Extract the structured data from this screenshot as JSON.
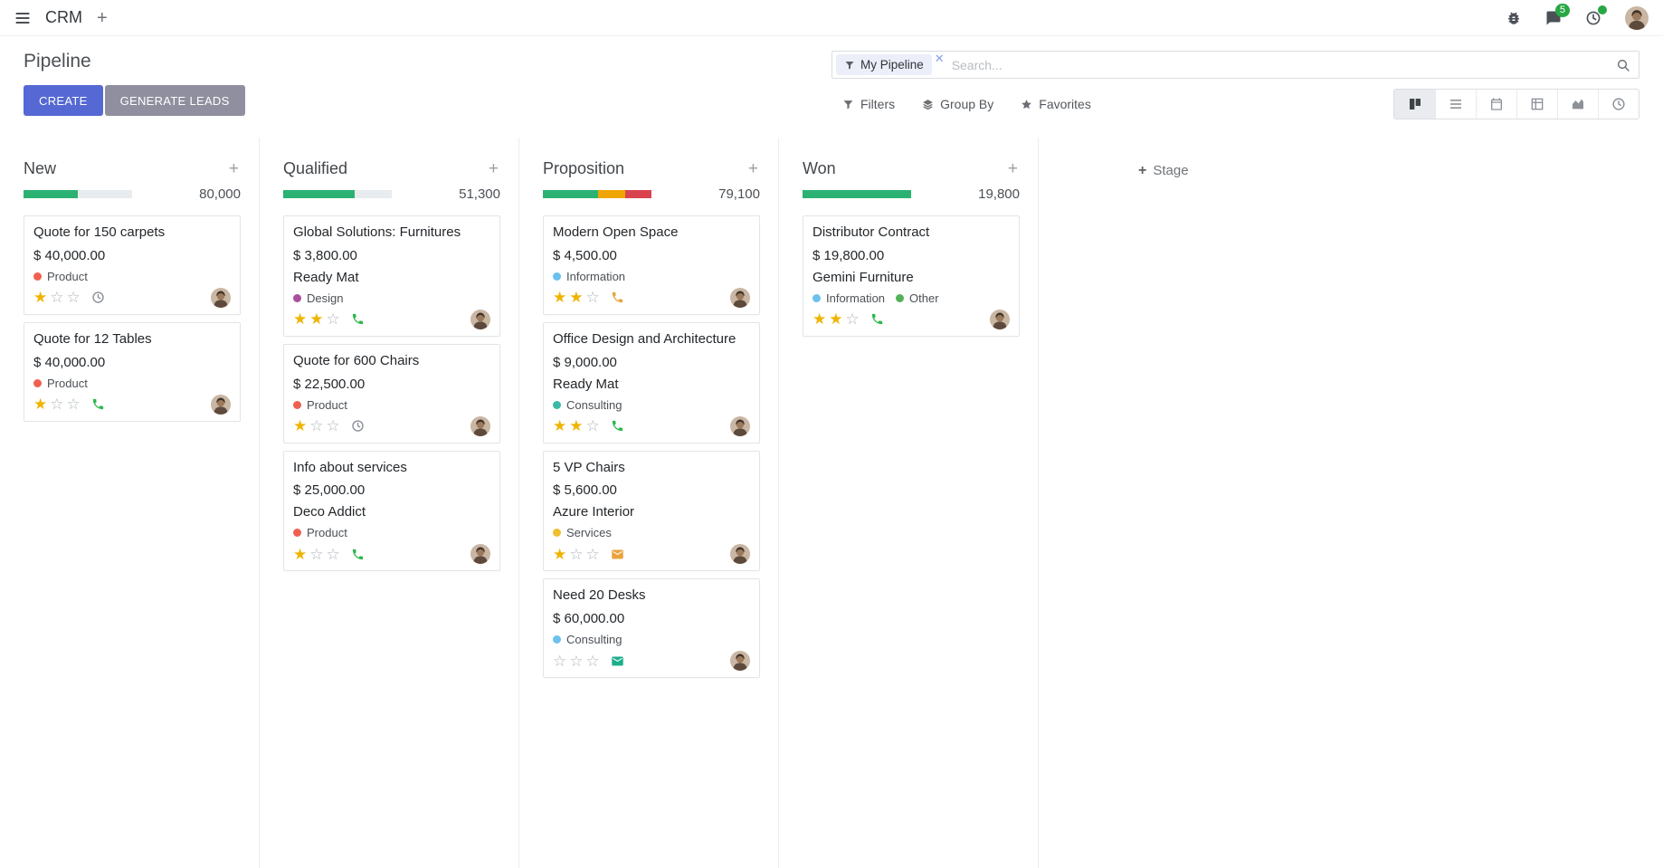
{
  "colors": {
    "primary_button": "#5568d4",
    "secondary_button": "#8f8f9f",
    "badge_green": "#28a745",
    "progress_green": "#2bb273",
    "progress_yellow": "#efa502",
    "progress_red": "#d94350",
    "progress_muted": "#e9ecef",
    "star_gold": "#efb400"
  },
  "navbar": {
    "app": "CRM",
    "messages_count": "5"
  },
  "control": {
    "title": "Pipeline",
    "create": "CREATE",
    "generate_leads": "GENERATE LEADS",
    "filters": "Filters",
    "group_by": "Group By",
    "favorites": "Favorites",
    "search_facet": "My Pipeline",
    "search_placeholder": "Search...",
    "add_stage": "Stage"
  },
  "columns": [
    {
      "name": "New",
      "counter": "80,000",
      "progress": [
        {
          "color": "#2bb273",
          "pct": 50
        }
      ],
      "cards": [
        {
          "title": "Quote for 150 carpets",
          "amount": "$ 40,000.00",
          "tags": [
            {
              "label": "Product",
              "color": "#f06050"
            }
          ],
          "stars": 1,
          "activity": {
            "icon": "clock",
            "color": "#8a8f98"
          }
        },
        {
          "title": "Quote for 12 Tables",
          "amount": "$ 40,000.00",
          "tags": [
            {
              "label": "Product",
              "color": "#f06050"
            }
          ],
          "stars": 1,
          "activity": {
            "icon": "phone",
            "color": "#2db84b"
          }
        }
      ]
    },
    {
      "name": "Qualified",
      "counter": "51,300",
      "progress": [
        {
          "color": "#2bb273",
          "pct": 66
        }
      ],
      "cards": [
        {
          "title": "Global Solutions: Furnitures",
          "amount": "$ 3,800.00",
          "partner": "Ready Mat",
          "tags": [
            {
              "label": "Design",
              "color": "#a8509e"
            }
          ],
          "stars": 2,
          "activity": {
            "icon": "phone",
            "color": "#2db84b"
          }
        },
        {
          "title": "Quote for 600 Chairs",
          "amount": "$ 22,500.00",
          "tags": [
            {
              "label": "Product",
              "color": "#f06050"
            }
          ],
          "stars": 1,
          "activity": {
            "icon": "clock",
            "color": "#8a8f98"
          }
        },
        {
          "title": "Info about services",
          "amount": "$ 25,000.00",
          "partner": "Deco Addict",
          "tags": [
            {
              "label": "Product",
              "color": "#f06050"
            }
          ],
          "stars": 1,
          "activity": {
            "icon": "phone",
            "color": "#2db84b"
          }
        }
      ]
    },
    {
      "name": "Proposition",
      "counter": "79,100",
      "progress": [
        {
          "color": "#2bb273",
          "pct": 51
        },
        {
          "color": "#efa502",
          "pct": 25
        },
        {
          "color": "#d94350",
          "pct": 24
        }
      ],
      "cards": [
        {
          "title": "Modern Open Space",
          "amount": "$ 4,500.00",
          "tags": [
            {
              "label": "Information",
              "color": "#6cc1ed"
            }
          ],
          "stars": 2,
          "activity": {
            "icon": "phone",
            "color": "#e9a33c"
          }
        },
        {
          "title": "Office Design and Architecture",
          "amount": "$ 9,000.00",
          "partner": "Ready Mat",
          "tags": [
            {
              "label": "Consulting",
              "color": "#3cb8a6"
            }
          ],
          "stars": 2,
          "activity": {
            "icon": "phone",
            "color": "#2db84b"
          }
        },
        {
          "title": "5 VP Chairs",
          "amount": "$ 5,600.00",
          "partner": "Azure Interior",
          "tags": [
            {
              "label": "Services",
              "color": "#efc02f"
            }
          ],
          "stars": 1,
          "activity": {
            "icon": "envelope",
            "color": "#e9a33c"
          }
        },
        {
          "title": "Need 20 Desks",
          "amount": "$ 60,000.00",
          "tags": [
            {
              "label": "Consulting",
              "color": "#6cc1ed"
            }
          ],
          "stars": 0,
          "activity": {
            "icon": "envelope",
            "color": "#1fae8a"
          }
        }
      ]
    },
    {
      "name": "Won",
      "counter": "19,800",
      "progress": [
        {
          "color": "#2bb273",
          "pct": 100
        }
      ],
      "cards": [
        {
          "title": "Distributor Contract",
          "amount": "$ 19,800.00",
          "partner": "Gemini Furniture",
          "tags": [
            {
              "label": "Information",
              "color": "#6cc1ed"
            },
            {
              "label": "Other",
              "color": "#53b158"
            }
          ],
          "stars": 2,
          "activity": {
            "icon": "phone",
            "color": "#2db84b"
          }
        }
      ]
    }
  ]
}
